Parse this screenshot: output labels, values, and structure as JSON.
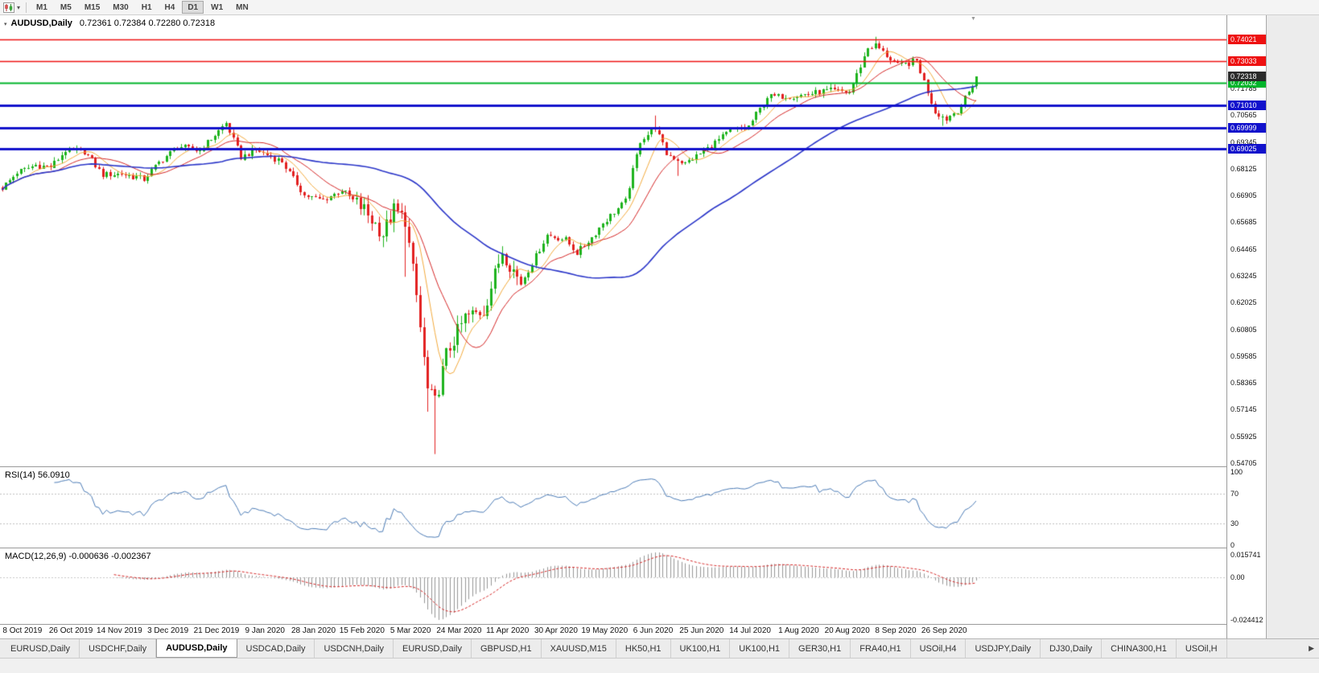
{
  "toolbar": {
    "timeframes": [
      "M1",
      "M5",
      "M15",
      "M30",
      "H1",
      "H4",
      "D1",
      "W1",
      "MN"
    ],
    "active_timeframe": "D1",
    "chart_type_icon": "candlestick-chart-icon",
    "dropdown_icon": "▾"
  },
  "chart": {
    "title": "AUDUSD,Daily",
    "ohlc": "0.72361 0.72384 0.72280 0.72318",
    "one_click_icon": "▾",
    "shift_marker_icon": "▼",
    "bid_badge": {
      "label": "0.72318",
      "color": "#2b2b2b"
    },
    "hlines": [
      {
        "label": "0.74021",
        "price": 0.74021,
        "color": "#ee1111",
        "width": 1.5
      },
      {
        "label": "0.73033",
        "price": 0.73033,
        "color": "#ee1111",
        "width": 1.5
      },
      {
        "label": "0.72032",
        "price": 0.72032,
        "color": "#00b42a",
        "width": 2
      },
      {
        "label": "0.71010",
        "price": 0.7101,
        "color": "#1212cc",
        "width": 3
      },
      {
        "label": "0.69999",
        "price": 0.69999,
        "color": "#1212cc",
        "width": 3
      },
      {
        "label": "0.69025",
        "price": 0.69025,
        "color": "#1212cc",
        "width": 3
      }
    ],
    "price_axis_labels": [
      "0.71785",
      "0.70565",
      "0.69345",
      "0.68125",
      "0.66905",
      "0.65685",
      "0.64465",
      "0.63245",
      "0.62025",
      "0.60805",
      "0.59585",
      "0.58365",
      "0.57145",
      "0.55925",
      "0.54705"
    ],
    "date_labels": [
      "8 Oct 2019",
      "26 Oct 2019",
      "14 Nov 2019",
      "3 Dec 2019",
      "21 Dec 2019",
      "9 Jan 2020",
      "28 Jan 2020",
      "15 Feb 2020",
      "5 Mar 2020",
      "24 Mar 2020",
      "11 Apr 2020",
      "30 Apr 2020",
      "19 May 2020",
      "6 Jun 2020",
      "25 Jun 2020",
      "14 Jul 2020",
      "1 Aug 2020",
      "20 Aug 2020",
      "8 Sep 2020",
      "26 Sep 2020"
    ]
  },
  "rsi_panel": {
    "label": "RSI(14) 56.0910",
    "axis_labels": [
      "100",
      "70",
      "30",
      "0"
    ],
    "axis_values": [
      100,
      70,
      30,
      0
    ],
    "levels": [
      70,
      30
    ],
    "line_color": "#4a7ab5"
  },
  "macd_panel": {
    "label": "MACD(12,26,9) -0.000636 -0.002367",
    "axis_labels": [
      "0.015741",
      "0.00",
      "-0.024412"
    ],
    "histogram_color": "#969696",
    "signal_color": "#d42525"
  },
  "tabs_bar": {
    "tabs": [
      "EURUSD,Daily",
      "USDCHF,Daily",
      "AUDUSD,Daily",
      "USDCAD,Daily",
      "USDCNH,Daily",
      "EURUSD,Daily",
      "GBPUSD,H1",
      "XAUUSD,M15",
      "HK50,H1",
      "UK100,H1",
      "UK100,H1",
      "GER30,H1",
      "FRA40,H1",
      "USOil,H4",
      "USDJPY,Daily",
      "DJ30,Daily",
      "CHINA300,H1",
      "USOil,H"
    ],
    "active_index": 2,
    "scroll_right_icon": "▶"
  },
  "chart_data": {
    "type": "candlestick",
    "symbol": "AUDUSD",
    "period": "Daily",
    "bars": 262,
    "price_max": 0.7512,
    "price_min": 0.5456,
    "up_color": "#1db31d",
    "down_color": "#e22020",
    "close_anchors": [
      [
        0,
        0.6725
      ],
      [
        4,
        0.6795
      ],
      [
        9,
        0.683
      ],
      [
        13,
        0.682
      ],
      [
        17,
        0.6895
      ],
      [
        22,
        0.689
      ],
      [
        27,
        0.6785
      ],
      [
        32,
        0.679
      ],
      [
        38,
        0.6765
      ],
      [
        42,
        0.684
      ],
      [
        47,
        0.6915
      ],
      [
        53,
        0.6895
      ],
      [
        60,
        0.702
      ],
      [
        64,
        0.6865
      ],
      [
        68,
        0.69
      ],
      [
        75,
        0.6845
      ],
      [
        81,
        0.669
      ],
      [
        86,
        0.667
      ],
      [
        91,
        0.6715
      ],
      [
        97,
        0.6625
      ],
      [
        102,
        0.6515
      ],
      [
        105,
        0.6625
      ],
      [
        108,
        0.658
      ],
      [
        111,
        0.623
      ],
      [
        114,
        0.58
      ],
      [
        116,
        0.5745
      ],
      [
        119,
        0.5965
      ],
      [
        124,
        0.6135
      ],
      [
        129,
        0.6165
      ],
      [
        134,
        0.644
      ],
      [
        139,
        0.629
      ],
      [
        146,
        0.651
      ],
      [
        151,
        0.649
      ],
      [
        154,
        0.643
      ],
      [
        158,
        0.65
      ],
      [
        161,
        0.6565
      ],
      [
        167,
        0.6665
      ],
      [
        171,
        0.694
      ],
      [
        175,
        0.7
      ],
      [
        178,
        0.688
      ],
      [
        183,
        0.6835
      ],
      [
        189,
        0.6905
      ],
      [
        195,
        0.6985
      ],
      [
        200,
        0.7005
      ],
      [
        205,
        0.714
      ],
      [
        212,
        0.7145
      ],
      [
        217,
        0.7155
      ],
      [
        222,
        0.717
      ],
      [
        227,
        0.716
      ],
      [
        232,
        0.7365
      ],
      [
        234,
        0.7375
      ],
      [
        240,
        0.728
      ],
      [
        245,
        0.7305
      ],
      [
        250,
        0.707
      ],
      [
        253,
        0.704
      ],
      [
        256,
        0.708
      ],
      [
        259,
        0.716
      ],
      [
        261,
        0.72318
      ]
    ],
    "low_overrides": [
      [
        102,
        0.6455
      ],
      [
        108,
        0.632
      ],
      [
        114,
        0.5705
      ],
      [
        116,
        0.5512
      ],
      [
        181,
        0.678
      ],
      [
        252,
        0.7008
      ]
    ],
    "high_overrides": [
      [
        175,
        0.7055
      ],
      [
        234,
        0.7414
      ]
    ],
    "high_volatility_range": [
      95,
      138
    ],
    "moving_averages": [
      {
        "period": 8,
        "color": "#f2a93b",
        "width": 1
      },
      {
        "period": 16,
        "color": "#d42525",
        "width": 1
      },
      {
        "period": 60,
        "color": "#2a35c8",
        "width": 1.6
      }
    ],
    "rsi": {
      "period": 14,
      "current": 56.091
    },
    "macd": {
      "fast": 12,
      "slow": 26,
      "signal": 9,
      "current": -0.000636,
      "signal_current": -0.002367
    }
  }
}
